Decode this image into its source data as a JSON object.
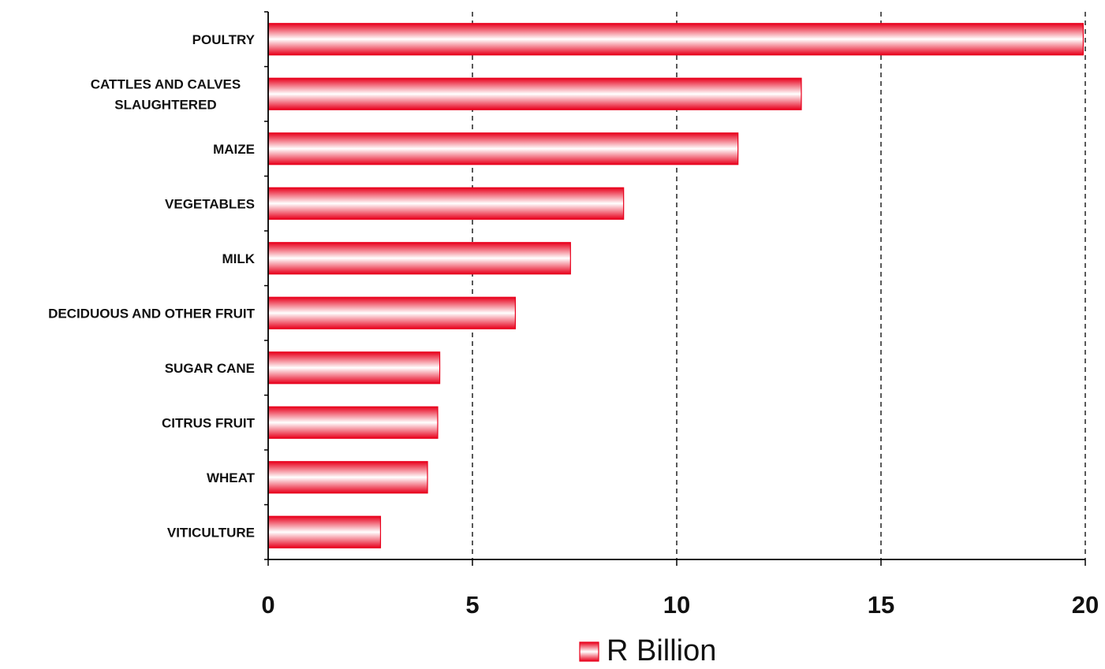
{
  "chart_data": {
    "type": "bar",
    "orientation": "horizontal",
    "categories": [
      [
        "POULTRY"
      ],
      [
        "CATTLES AND CALVES",
        "SLAUGHTERED"
      ],
      [
        "MAIZE"
      ],
      [
        "VEGETABLES"
      ],
      [
        "MILK"
      ],
      [
        "DECIDUOUS AND OTHER FRUIT"
      ],
      [
        "SUGAR CANE"
      ],
      [
        "CITRUS FRUIT"
      ],
      [
        "WHEAT"
      ],
      [
        "VITICULTURE"
      ]
    ],
    "series": [
      {
        "name": "R Billion",
        "values": [
          19.95,
          13.05,
          11.5,
          8.7,
          7.4,
          6.05,
          4.2,
          4.15,
          3.9,
          2.75
        ]
      }
    ],
    "xlim": [
      0,
      20
    ],
    "xticks": [
      "0",
      "5",
      "10",
      "15",
      "20"
    ],
    "grid": "vertical dashed",
    "legend_position": "bottom",
    "colors": {
      "bar_edge": "#e8001c",
      "bar_center": "#ffffff",
      "grid": "#000000",
      "axis": "#000000"
    }
  }
}
